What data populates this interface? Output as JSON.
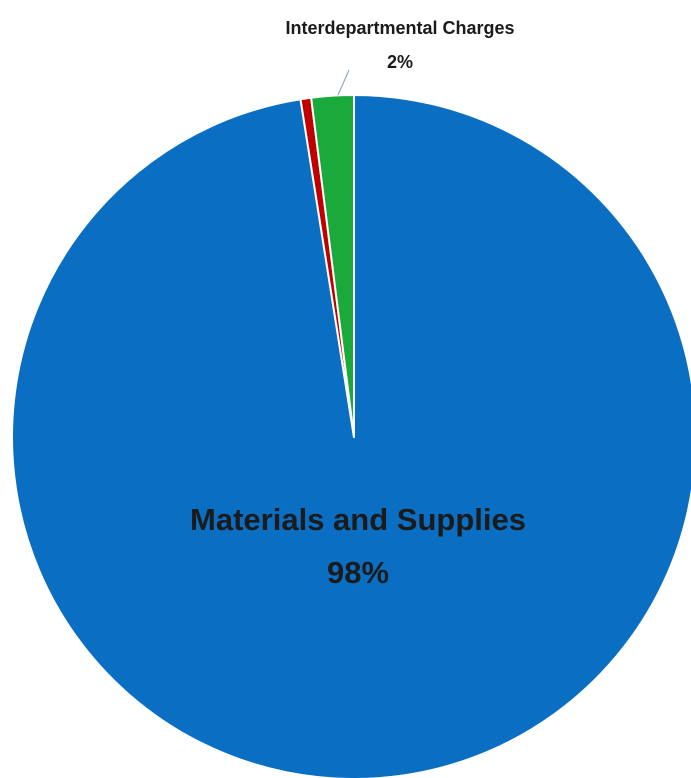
{
  "chart_data": {
    "type": "pie",
    "title": "",
    "start_angle_deg": 0,
    "direction": "clockwise",
    "slices": [
      {
        "name": "Materials and Supplies",
        "value": 97.5,
        "label": "Materials and Supplies",
        "percent_label": "98%",
        "color": "#0a6fc2"
      },
      {
        "name": "",
        "value": 0.5,
        "label": "",
        "percent_label": "",
        "color": "#c00000"
      },
      {
        "name": "Interdepartmental Charges",
        "value": 2.0,
        "label": "Interdepartmental Charges",
        "percent_label": "2%",
        "color": "#1aaa3c"
      }
    ],
    "legend": "none",
    "separator_color": "#ffffff"
  }
}
